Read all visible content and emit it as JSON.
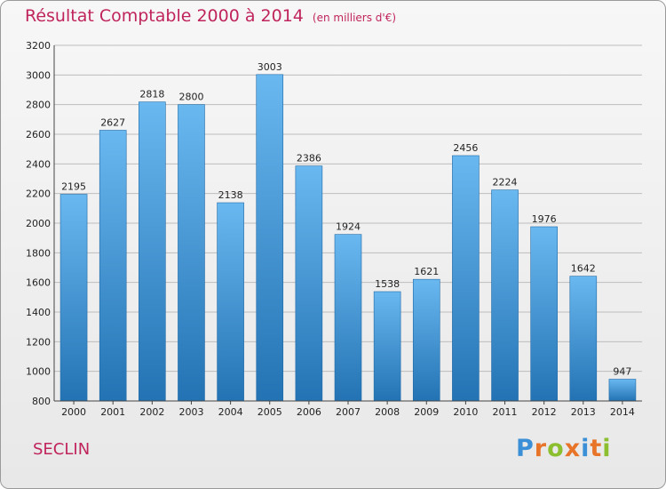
{
  "header": {
    "title": "Résultat Comptable 2000 à 2014",
    "unit_note": "(en milliers d'€)"
  },
  "footer": {
    "city": "SECLIN",
    "logo_text": "Proxiti"
  },
  "colors": {
    "title": "#c0245c",
    "bar_top": "#6ab8f0",
    "bar_bottom": "#2373b4",
    "grid": "#bdbdbd"
  },
  "chart_data": {
    "type": "bar",
    "categories": [
      "2000",
      "2001",
      "2002",
      "2003",
      "2004",
      "2005",
      "2006",
      "2007",
      "2008",
      "2009",
      "2010",
      "2011",
      "2012",
      "2013",
      "2014"
    ],
    "values": [
      2195,
      2627,
      2818,
      2800,
      2138,
      3003,
      2386,
      1924,
      1538,
      1621,
      2456,
      2224,
      1976,
      1642,
      947
    ],
    "ylim": [
      800,
      3200
    ],
    "yticks": [
      800,
      1000,
      1200,
      1400,
      1600,
      1800,
      2000,
      2200,
      2400,
      2600,
      2800,
      3000,
      3200
    ],
    "grid": true
  }
}
